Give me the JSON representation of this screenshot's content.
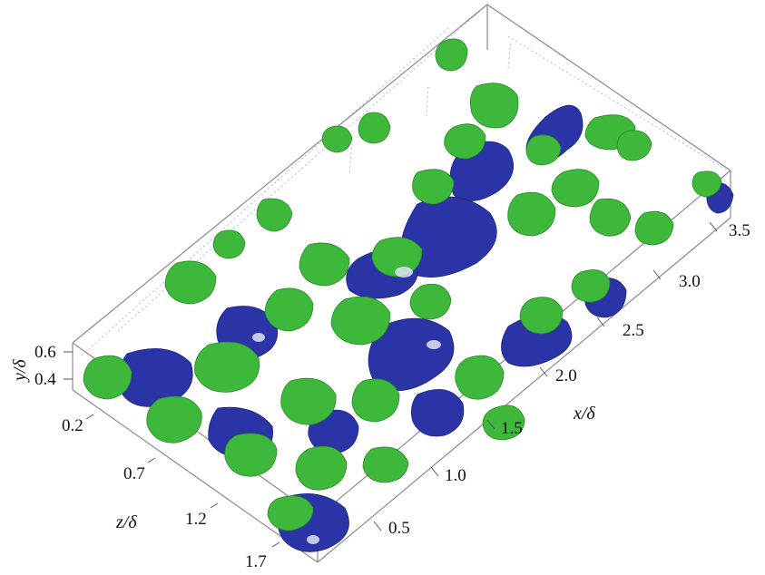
{
  "figure": {
    "type": "3d-isosurface-box",
    "colors": {
      "box": "#888888",
      "grid": "#b5b5b5",
      "green_structures": "#3db83a",
      "blue_structures": "#2b34a6",
      "highlight": "#dfe3f5"
    },
    "axes": {
      "x": {
        "title": "x/δ",
        "ticks": [
          "0.5",
          "1.0",
          "1.5",
          "2.0",
          "2.5",
          "3.0",
          "3.5"
        ]
      },
      "y": {
        "title": "y/δ",
        "ticks": [
          "0.6",
          "0.4"
        ]
      },
      "z": {
        "title": "z/δ",
        "ticks": [
          "0.2",
          "0.7",
          "1.2",
          "1.7"
        ]
      }
    }
  }
}
